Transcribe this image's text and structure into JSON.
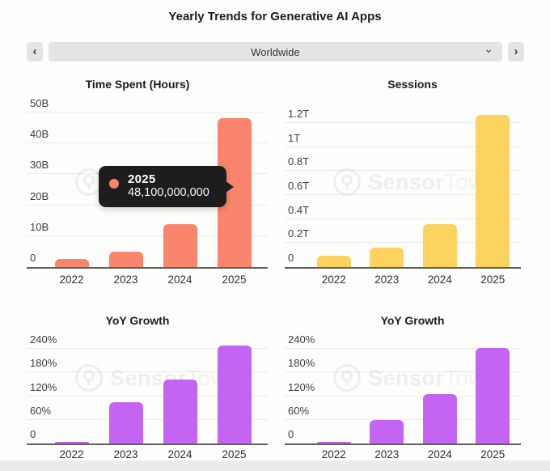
{
  "header": {
    "title": "Yearly Trends for Generative AI Apps"
  },
  "controls": {
    "prev_glyph": "‹",
    "next_glyph": "›",
    "region_value": "Worldwide",
    "caret_glyph": "⌄"
  },
  "watermark": {
    "brand_bold": "Sensor",
    "brand_light": "Tower"
  },
  "colors": {
    "time_spent_bar": "#f9856c",
    "sessions_bar": "#fbd35e",
    "yoy_growth_bar": "#c464f2",
    "tooltip_bg": "#1d1d1d",
    "axis_line": "#5f5f5f",
    "gridline": "#eaeae8",
    "control_bg": "#e4e4e2",
    "page_bg": "#fdfdfb"
  },
  "chart_data": [
    {
      "id": "time-spent",
      "type": "bar",
      "title": "Time Spent (Hours)",
      "categories": [
        "2022",
        "2023",
        "2024",
        "2025"
      ],
      "values": [
        2.6,
        5.1,
        13.9,
        48.1
      ],
      "unit": "billions of hours",
      "yticks": [
        {
          "v": 0,
          "label": "0"
        },
        {
          "v": 10,
          "label": "10B"
        },
        {
          "v": 20,
          "label": "20B"
        },
        {
          "v": 30,
          "label": "30B"
        },
        {
          "v": 40,
          "label": "40B"
        },
        {
          "v": 50,
          "label": "50B"
        }
      ],
      "ylim": [
        0,
        55.5
      ],
      "grid": true,
      "legend": "none",
      "bar_color": "#f9856c",
      "tooltip": {
        "year": "2025",
        "value": "48,100,000,000"
      }
    },
    {
      "id": "sessions",
      "type": "bar",
      "title": "Sessions",
      "categories": [
        "2022",
        "2023",
        "2024",
        "2025"
      ],
      "values": [
        0.095,
        0.16,
        0.36,
        1.265
      ],
      "unit": "trillions of sessions",
      "yticks": [
        {
          "v": 0,
          "label": "0"
        },
        {
          "v": 0.2,
          "label": "0.2T"
        },
        {
          "v": 0.4,
          "label": "0.4T"
        },
        {
          "v": 0.6,
          "label": "0.6T"
        },
        {
          "v": 0.8,
          "label": "0.8T"
        },
        {
          "v": 1.0,
          "label": "1T"
        },
        {
          "v": 1.2,
          "label": "1.2T"
        }
      ],
      "ylim": [
        0,
        1.43
      ],
      "grid": true,
      "legend": "none",
      "bar_color": "#fbd35e"
    },
    {
      "id": "yoy-growth-time-spent",
      "type": "bar",
      "title": "YoY Growth",
      "categories": [
        "2022",
        "2023",
        "2024",
        "2025"
      ],
      "values": [
        4,
        105,
        163,
        248
      ],
      "unit": "percent",
      "yticks": [
        {
          "v": 0,
          "label": "0"
        },
        {
          "v": 60,
          "label": "60%"
        },
        {
          "v": 120,
          "label": "120%"
        },
        {
          "v": 180,
          "label": "180%"
        },
        {
          "v": 240,
          "label": "240%"
        }
      ],
      "ylim": [
        0,
        267
      ],
      "grid": true,
      "legend": "none",
      "bar_color": "#c464f2"
    },
    {
      "id": "yoy-growth-sessions",
      "type": "bar",
      "title": "YoY Growth",
      "categories": [
        "2022",
        "2023",
        "2024",
        "2025"
      ],
      "values": [
        3,
        60,
        125,
        243
      ],
      "unit": "percent",
      "yticks": [
        {
          "v": 0,
          "label": "0"
        },
        {
          "v": 60,
          "label": "60%"
        },
        {
          "v": 120,
          "label": "120%"
        },
        {
          "v": 180,
          "label": "180%"
        },
        {
          "v": 240,
          "label": "240%"
        }
      ],
      "ylim": [
        0,
        267
      ],
      "grid": true,
      "legend": "none",
      "bar_color": "#c464f2"
    }
  ]
}
